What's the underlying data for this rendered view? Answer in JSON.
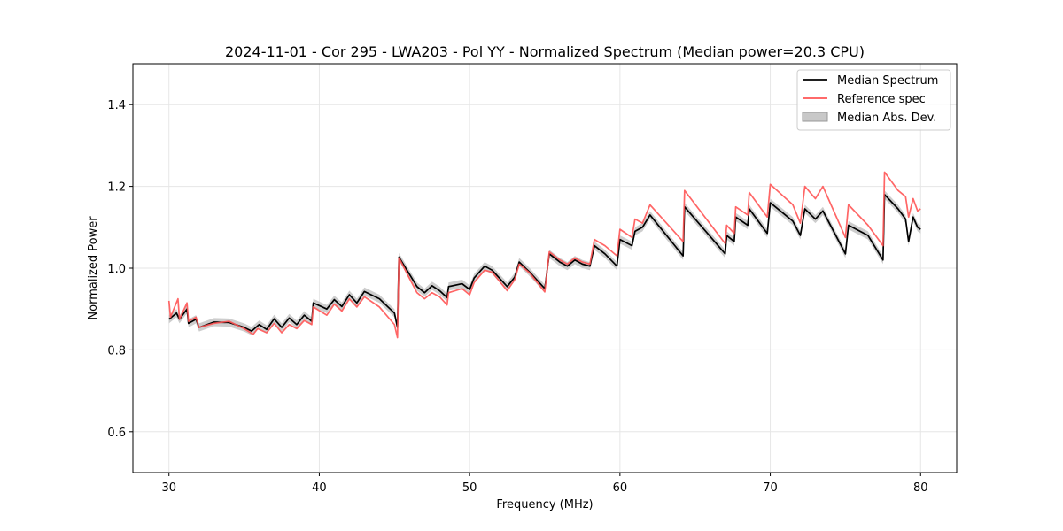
{
  "chart_data": {
    "type": "line",
    "title": "2024-11-01 - Cor 295 - LWA203 - Pol YY - Normalized Spectrum (Median power=20.3 CPU)",
    "xlabel": "Frequency (MHz)",
    "ylabel": "Normalized Power",
    "xlim": [
      27.6,
      82.4
    ],
    "ylim": [
      0.5,
      1.5
    ],
    "xticks": [
      30,
      40,
      50,
      60,
      70,
      80
    ],
    "yticks": [
      0.6,
      0.8,
      1.0,
      1.2,
      1.4
    ],
    "xtick_labels": [
      "30",
      "40",
      "50",
      "60",
      "70",
      "80"
    ],
    "ytick_labels": [
      "0.6",
      "0.8",
      "1.0",
      "1.2",
      "1.4"
    ],
    "grid": true,
    "legend_position": "top-right",
    "mad_band_halfwidth": 0.01,
    "series": [
      {
        "name": "Median Spectrum",
        "color": "#000000",
        "points": [
          [
            30.0,
            0.875
          ],
          [
            30.5,
            0.89
          ],
          [
            30.7,
            0.875
          ],
          [
            31.2,
            0.9
          ],
          [
            31.3,
            0.865
          ],
          [
            31.8,
            0.875
          ],
          [
            32.0,
            0.855
          ],
          [
            33.0,
            0.868
          ],
          [
            34.0,
            0.867
          ],
          [
            35.0,
            0.855
          ],
          [
            35.5,
            0.846
          ],
          [
            36.0,
            0.862
          ],
          [
            36.5,
            0.85
          ],
          [
            37.0,
            0.876
          ],
          [
            37.5,
            0.855
          ],
          [
            38.0,
            0.878
          ],
          [
            38.5,
            0.862
          ],
          [
            39.0,
            0.885
          ],
          [
            39.5,
            0.87
          ],
          [
            39.6,
            0.915
          ],
          [
            40.5,
            0.9
          ],
          [
            41.0,
            0.923
          ],
          [
            41.5,
            0.906
          ],
          [
            42.0,
            0.935
          ],
          [
            42.5,
            0.915
          ],
          [
            43.0,
            0.943
          ],
          [
            44.0,
            0.925
          ],
          [
            45.0,
            0.89
          ],
          [
            45.2,
            0.855
          ],
          [
            45.3,
            1.027
          ],
          [
            46.0,
            0.985
          ],
          [
            46.5,
            0.955
          ],
          [
            47.0,
            0.94
          ],
          [
            47.5,
            0.957
          ],
          [
            48.0,
            0.945
          ],
          [
            48.5,
            0.928
          ],
          [
            48.6,
            0.955
          ],
          [
            49.5,
            0.962
          ],
          [
            50.0,
            0.948
          ],
          [
            50.3,
            0.976
          ],
          [
            51.0,
            1.005
          ],
          [
            51.5,
            0.995
          ],
          [
            52.5,
            0.955
          ],
          [
            53.0,
            0.978
          ],
          [
            53.3,
            1.015
          ],
          [
            54.0,
            0.99
          ],
          [
            55.0,
            0.95
          ],
          [
            55.3,
            1.035
          ],
          [
            56.0,
            1.015
          ],
          [
            56.5,
            1.005
          ],
          [
            57.0,
            1.02
          ],
          [
            57.5,
            1.01
          ],
          [
            58.0,
            1.005
          ],
          [
            58.3,
            1.055
          ],
          [
            59.0,
            1.035
          ],
          [
            59.8,
            1.005
          ],
          [
            60.0,
            1.07
          ],
          [
            60.8,
            1.055
          ],
          [
            61.0,
            1.09
          ],
          [
            61.5,
            1.1
          ],
          [
            62.0,
            1.13
          ],
          [
            64.2,
            1.03
          ],
          [
            64.3,
            1.15
          ],
          [
            67.0,
            1.035
          ],
          [
            67.1,
            1.08
          ],
          [
            67.6,
            1.065
          ],
          [
            67.7,
            1.125
          ],
          [
            68.5,
            1.105
          ],
          [
            68.6,
            1.145
          ],
          [
            69.8,
            1.085
          ],
          [
            70.0,
            1.16
          ],
          [
            71.5,
            1.115
          ],
          [
            72.0,
            1.08
          ],
          [
            72.3,
            1.145
          ],
          [
            73.0,
            1.12
          ],
          [
            73.5,
            1.14
          ],
          [
            75.0,
            1.035
          ],
          [
            75.2,
            1.105
          ],
          [
            76.5,
            1.08
          ],
          [
            77.5,
            1.02
          ],
          [
            77.6,
            1.18
          ],
          [
            78.5,
            1.145
          ],
          [
            79.0,
            1.12
          ],
          [
            79.2,
            1.065
          ],
          [
            79.5,
            1.125
          ],
          [
            79.8,
            1.1
          ],
          [
            80.0,
            1.095
          ]
        ]
      },
      {
        "name": "Reference spec",
        "color": "#ff5555",
        "points": [
          [
            30.0,
            0.92
          ],
          [
            30.1,
            0.88
          ],
          [
            30.6,
            0.925
          ],
          [
            30.7,
            0.875
          ],
          [
            31.2,
            0.915
          ],
          [
            31.3,
            0.87
          ],
          [
            31.8,
            0.88
          ],
          [
            32.0,
            0.855
          ],
          [
            33.0,
            0.865
          ],
          [
            34.0,
            0.87
          ],
          [
            35.0,
            0.852
          ],
          [
            35.6,
            0.838
          ],
          [
            35.9,
            0.852
          ],
          [
            36.5,
            0.842
          ],
          [
            37.0,
            0.865
          ],
          [
            37.5,
            0.842
          ],
          [
            38.0,
            0.862
          ],
          [
            38.5,
            0.852
          ],
          [
            39.0,
            0.872
          ],
          [
            39.5,
            0.862
          ],
          [
            39.6,
            0.905
          ],
          [
            40.5,
            0.885
          ],
          [
            41.0,
            0.912
          ],
          [
            41.5,
            0.895
          ],
          [
            42.0,
            0.925
          ],
          [
            42.5,
            0.905
          ],
          [
            43.0,
            0.93
          ],
          [
            44.0,
            0.905
          ],
          [
            45.0,
            0.862
          ],
          [
            45.2,
            0.83
          ],
          [
            45.3,
            1.025
          ],
          [
            46.0,
            0.975
          ],
          [
            46.5,
            0.94
          ],
          [
            47.0,
            0.925
          ],
          [
            47.5,
            0.94
          ],
          [
            48.0,
            0.93
          ],
          [
            48.5,
            0.91
          ],
          [
            48.6,
            0.94
          ],
          [
            49.5,
            0.95
          ],
          [
            50.0,
            0.935
          ],
          [
            50.3,
            0.965
          ],
          [
            51.0,
            0.995
          ],
          [
            51.5,
            0.99
          ],
          [
            52.5,
            0.945
          ],
          [
            53.0,
            0.972
          ],
          [
            53.3,
            1.01
          ],
          [
            54.0,
            0.988
          ],
          [
            55.0,
            0.942
          ],
          [
            55.3,
            1.04
          ],
          [
            56.0,
            1.02
          ],
          [
            56.5,
            1.01
          ],
          [
            57.0,
            1.025
          ],
          [
            57.5,
            1.015
          ],
          [
            58.0,
            1.01
          ],
          [
            58.3,
            1.07
          ],
          [
            59.0,
            1.055
          ],
          [
            59.8,
            1.03
          ],
          [
            60.0,
            1.095
          ],
          [
            60.8,
            1.075
          ],
          [
            61.0,
            1.12
          ],
          [
            61.5,
            1.11
          ],
          [
            62.0,
            1.155
          ],
          [
            64.2,
            1.065
          ],
          [
            64.3,
            1.19
          ],
          [
            67.0,
            1.06
          ],
          [
            67.1,
            1.105
          ],
          [
            67.6,
            1.085
          ],
          [
            67.7,
            1.15
          ],
          [
            68.5,
            1.13
          ],
          [
            68.6,
            1.185
          ],
          [
            69.8,
            1.125
          ],
          [
            70.0,
            1.205
          ],
          [
            71.5,
            1.155
          ],
          [
            72.0,
            1.11
          ],
          [
            72.3,
            1.2
          ],
          [
            73.0,
            1.17
          ],
          [
            73.5,
            1.2
          ],
          [
            75.0,
            1.075
          ],
          [
            75.2,
            1.155
          ],
          [
            76.5,
            1.105
          ],
          [
            77.5,
            1.055
          ],
          [
            77.6,
            1.235
          ],
          [
            78.5,
            1.19
          ],
          [
            79.0,
            1.175
          ],
          [
            79.2,
            1.125
          ],
          [
            79.5,
            1.17
          ],
          [
            79.8,
            1.14
          ],
          [
            80.0,
            1.145
          ]
        ]
      }
    ],
    "legend": [
      {
        "label": "Median Spectrum",
        "kind": "line",
        "color": "#000000"
      },
      {
        "label": "Reference spec",
        "kind": "line",
        "color": "#ff5555"
      },
      {
        "label": "Median Abs. Dev.",
        "kind": "patch",
        "color": "#c8c8c8"
      }
    ]
  }
}
